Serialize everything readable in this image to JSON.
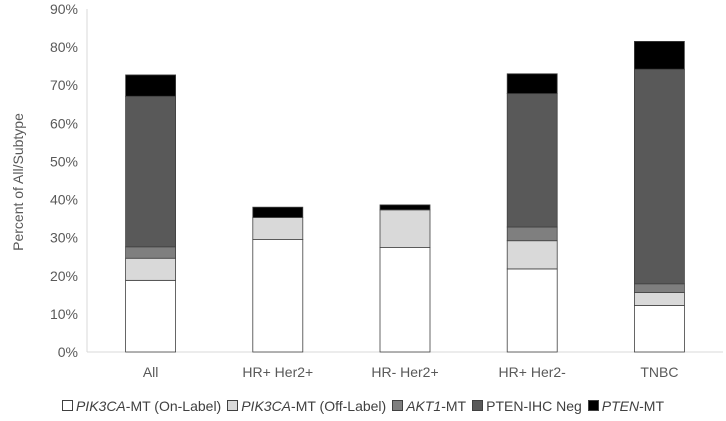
{
  "chart_data": {
    "type": "bar",
    "stacked": true,
    "title": "",
    "xlabel": "",
    "ylabel": "Percent of All/Subtype",
    "ylim": [
      0,
      90
    ],
    "yticks": [
      "0%",
      "10%",
      "20%",
      "30%",
      "40%",
      "50%",
      "60%",
      "70%",
      "80%",
      "90%"
    ],
    "categories": [
      "All",
      "HR+ Her2+",
      "HR- Her2+",
      "HR+ Her2-",
      "TNBC"
    ],
    "series": [
      {
        "name": "PIK3CA-MT (On-Label)",
        "name_italic": "PIK3CA",
        "name_rest": "-MT (On-Label)",
        "color": "#ffffff",
        "values": [
          18.8,
          29.5,
          27.4,
          21.8,
          12.2
        ]
      },
      {
        "name": "PIK3CA-MT (Off-Label)",
        "name_italic": "PIK3CA",
        "name_rest": "-MT (Off-Label)",
        "color": "#d9d9d9",
        "values": [
          5.8,
          5.8,
          9.9,
          7.4,
          3.4
        ]
      },
      {
        "name": "AKT1-MT",
        "name_italic": "AKT1",
        "name_rest": "-MT",
        "color": "#7f7f7f",
        "values": [
          3.0,
          0,
          0,
          3.6,
          2.3
        ]
      },
      {
        "name": "PTEN-IHC Neg",
        "name_italic": "",
        "name_rest": "PTEN-IHC Neg",
        "color": "#595959",
        "values": [
          39.5,
          0,
          0,
          35.0,
          56.3
        ]
      },
      {
        "name": "PTEN-MT",
        "name_italic": "PTEN",
        "name_rest": "-MT",
        "color": "#000000",
        "values": [
          5.6,
          2.7,
          1.3,
          5.2,
          7.3
        ]
      }
    ],
    "grid": false,
    "legend_position": "bottom"
  }
}
